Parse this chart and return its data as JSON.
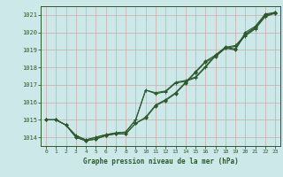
{
  "title": "Graphe pression niveau de la mer (hPa)",
  "bg_color": "#cce8e8",
  "grid_color": "#aacccc",
  "line_color": "#2d5a2d",
  "x_ticks": [
    0,
    1,
    2,
    3,
    4,
    5,
    6,
    7,
    8,
    9,
    10,
    11,
    12,
    13,
    14,
    15,
    16,
    17,
    18,
    19,
    20,
    21,
    22,
    23
  ],
  "y_ticks": [
    1014,
    1015,
    1016,
    1017,
    1018,
    1019,
    1020,
    1021
  ],
  "ylim": [
    1013.5,
    1021.5
  ],
  "xlim": [
    -0.5,
    23.5
  ],
  "y_diamond": [
    1015.0,
    1015.0,
    1014.7,
    1014.0,
    1013.8,
    1013.9,
    1014.1,
    1014.2,
    1014.2,
    1014.8,
    1015.1,
    1015.8,
    1016.1,
    1016.5,
    1017.1,
    1017.7,
    1018.3,
    1018.6,
    1019.1,
    1019.0,
    1019.9,
    1020.3,
    1021.0,
    1021.1
  ],
  "y_cross1": [
    1015.0,
    1015.0,
    1014.7,
    1014.1,
    1013.85,
    1014.0,
    1014.15,
    1014.25,
    1014.3,
    1015.0,
    1016.7,
    1016.5,
    1016.6,
    1017.1,
    1017.2,
    1017.4,
    1018.0,
    1018.65,
    1019.1,
    1019.2,
    1019.8,
    1020.2,
    1020.9,
    1021.1
  ],
  "y_cross2": [
    1015.0,
    1015.0,
    1014.7,
    1014.1,
    1013.85,
    1014.0,
    1014.15,
    1014.25,
    1014.3,
    1015.0,
    1016.7,
    1016.55,
    1016.65,
    1017.15,
    1017.25,
    1017.45,
    1018.05,
    1018.7,
    1019.15,
    1019.25,
    1019.85,
    1020.25,
    1020.95,
    1021.15
  ],
  "y_diamond2": [
    1015.0,
    1015.0,
    1014.7,
    1014.0,
    1013.8,
    1013.9,
    1014.1,
    1014.2,
    1014.2,
    1014.8,
    1015.15,
    1015.85,
    1016.15,
    1016.55,
    1017.15,
    1017.75,
    1018.35,
    1018.7,
    1019.15,
    1019.05,
    1020.0,
    1020.35,
    1021.05,
    1021.15
  ]
}
